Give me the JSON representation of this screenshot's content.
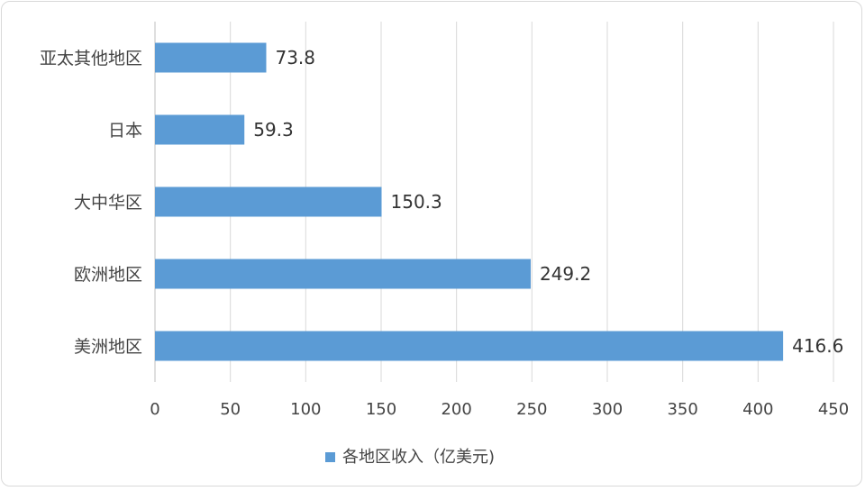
{
  "chart_data": {
    "type": "bar",
    "orientation": "horizontal",
    "categories": [
      "美洲地区",
      "欧洲地区",
      "大中华区",
      "日本",
      "亚太其他地区"
    ],
    "series": [
      {
        "name": "各地区收入（亿美元)",
        "values": [
          416.6,
          249.2,
          150.3,
          59.3,
          73.8
        ],
        "color": "#5b9bd5"
      }
    ],
    "data_labels": [
      "416.6",
      "249.2",
      "150.3",
      "59.3",
      "73.8"
    ],
    "xlim": [
      0,
      450
    ],
    "xticks": [
      0,
      50,
      100,
      150,
      200,
      250,
      300,
      350,
      400,
      450
    ],
    "grid": true,
    "legend_position": "bottom",
    "title": "",
    "xlabel": "",
    "ylabel": ""
  },
  "colors": {
    "bar": "#5b9bd5",
    "grid": "#d9d9d9",
    "text": "#444444"
  }
}
